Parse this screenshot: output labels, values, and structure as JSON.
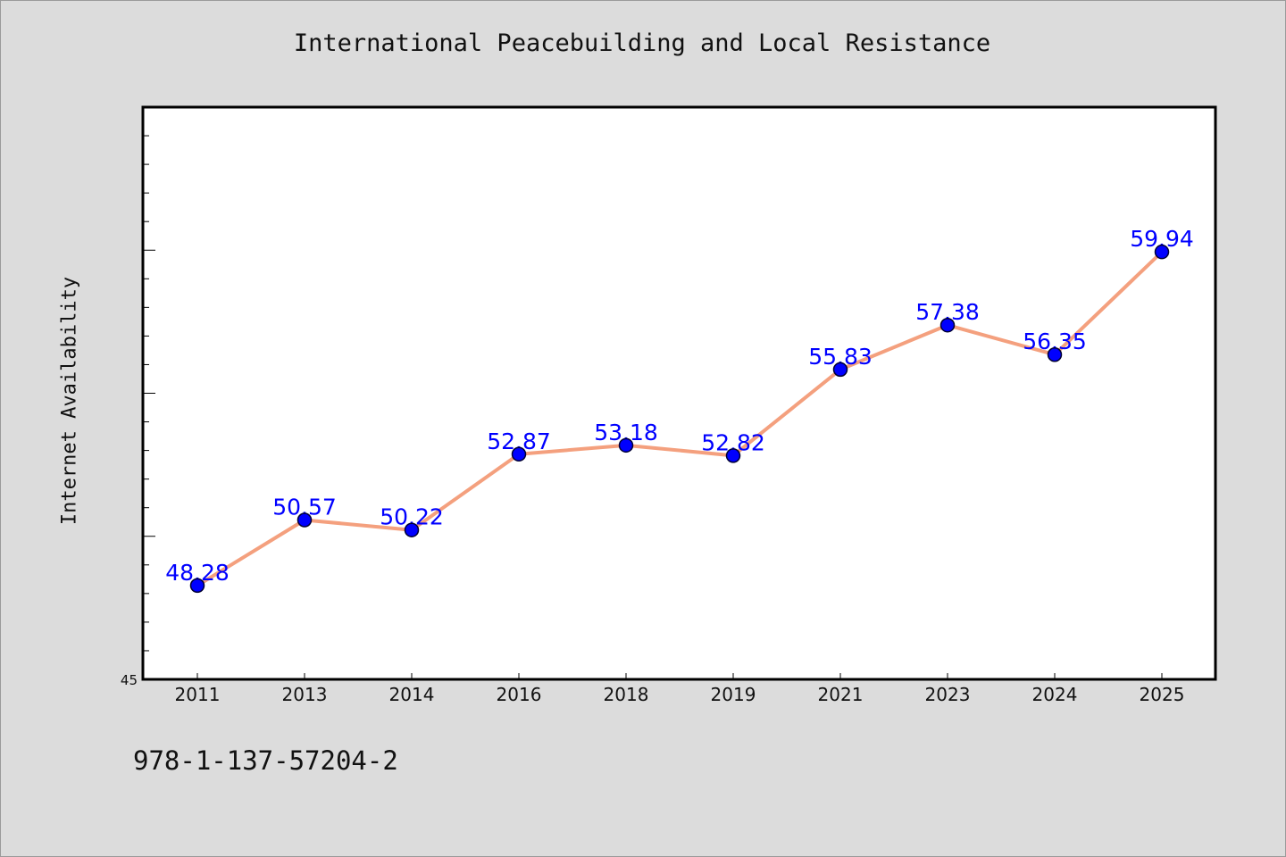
{
  "chart_data": {
    "type": "line",
    "title": "International Peacebuilding and Local Resistance",
    "xlabel": "",
    "ylabel": "Internet Availability",
    "categories": [
      "2011",
      "2013",
      "2014",
      "2016",
      "2018",
      "2019",
      "2021",
      "2023",
      "2024",
      "2025"
    ],
    "series": [
      {
        "values": [
          48.28,
          50.57,
          50.22,
          52.87,
          53.18,
          52.82,
          55.83,
          57.38,
          56.35,
          59.94
        ],
        "data_labels": [
          "48.28",
          "50.57",
          "50.22",
          "52.87",
          "53.18",
          "52.82",
          "55.83",
          "57.38",
          "56.35",
          "59.94"
        ]
      }
    ],
    "ylim": [
      45,
      65
    ],
    "y_tick_labels": [
      "45"
    ],
    "grid": false,
    "legend": "none",
    "colors": {
      "line": "#f4a07e",
      "marker": "#0000ff",
      "data_label": "#0000ff",
      "plot_background": "#ffffff",
      "figure_background": "#dcdcdc"
    }
  },
  "footer": {
    "isbn": "978-1-137-57204-2"
  }
}
